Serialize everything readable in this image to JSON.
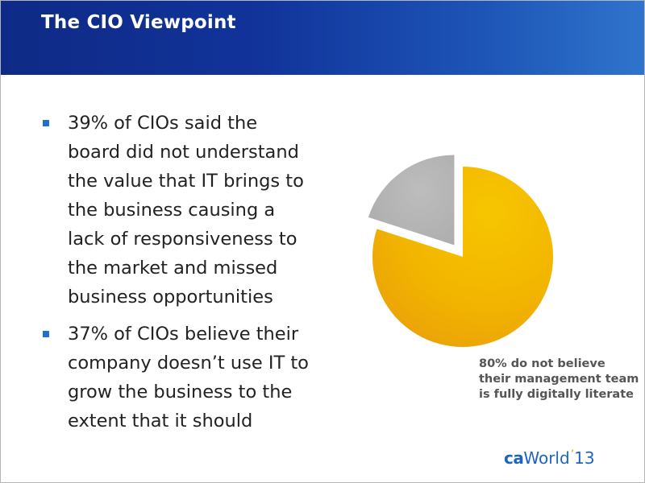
{
  "slide": {
    "title": "The CIO Viewpoint"
  },
  "bullets": [
    "39% of CIOs said the board did not understand the value that IT brings to the business causing a lack of responsiveness to the market and missed business opportunities",
    "37% of CIOs believe their company doesn’t use IT to grow the business to the extent that it should"
  ],
  "chart_data": {
    "type": "pie",
    "slices": [
      {
        "value": 80,
        "color": "#f0b400"
      },
      {
        "value": 20,
        "color": "#b4b4b4",
        "exploded": true
      }
    ],
    "annotation": "80% do not believe their management team is fully digitally literate"
  },
  "logo": {
    "ca": "ca",
    "world": "World",
    "quote": "’",
    "year": "13"
  }
}
